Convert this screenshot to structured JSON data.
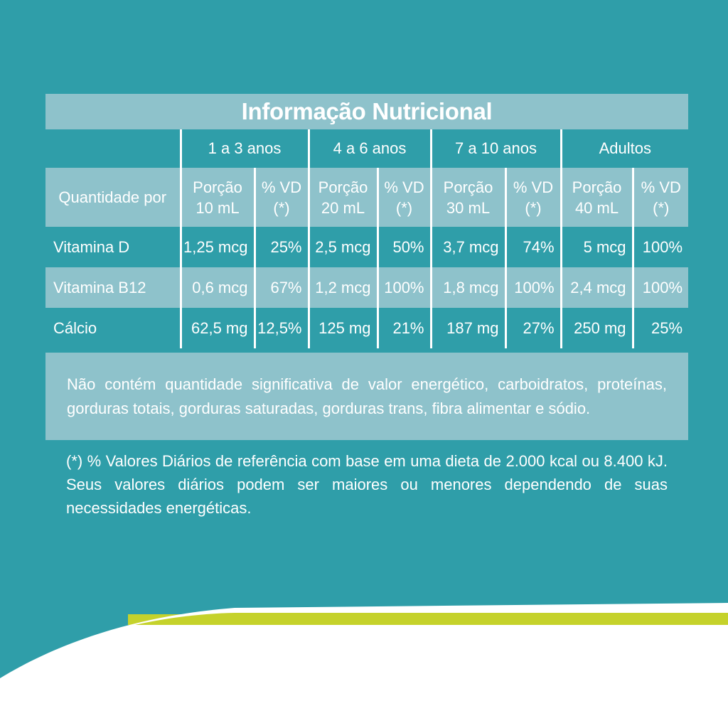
{
  "title": "Informação Nutricional",
  "groups": [
    "1 a 3 anos",
    "4 a 6 anos",
    "7 a 10 anos",
    "Adultos"
  ],
  "quantity_label": "Quantidade por",
  "subheaders": [
    {
      "portion": "Porção",
      "amount": "10 mL",
      "vd": "% VD",
      "ref": "(*)"
    },
    {
      "portion": "Porção",
      "amount": "20 mL",
      "vd": "% VD",
      "ref": "(*)"
    },
    {
      "portion": "Porção",
      "amount": "30 mL",
      "vd": "% VD",
      "ref": "(*)"
    },
    {
      "portion": "Porção",
      "amount": "40 mL",
      "vd": "% VD",
      "ref": "(*)"
    }
  ],
  "rows": [
    {
      "name": "Vitamina D",
      "values": [
        "1,25 mcg",
        "25%",
        "2,5 mcg",
        "50%",
        "3,7 mcg",
        "74%",
        "5 mcg",
        "100%"
      ]
    },
    {
      "name": "Vitamina B12",
      "values": [
        "0,6 mcg",
        "67%",
        "1,2 mcg",
        "100%",
        "1,8 mcg",
        "100%",
        "2,4 mcg",
        "100%"
      ]
    },
    {
      "name": "Cálcio",
      "values": [
        "62,5 mg",
        "12,5%",
        "125 mg",
        "21%",
        "187 mg",
        "27%",
        "250 mg",
        "25%"
      ]
    }
  ],
  "note": "Não contém quantidade significativa de valor energético, carboidratos, proteínas, gorduras totais, gorduras saturadas, gorduras trans, fibra alimentar e sódio.",
  "footnote": "(*) % Valores Diários de referência com base em uma dieta de 2.000 kcal ou 8.400 kJ. Seus valores diários podem ser maiores ou menores dependendo de suas necessidades energéticas.",
  "colors": {
    "background": "#2f9ea9",
    "light_band": "#8ec2cb",
    "accent_stripe": "#c5d22b",
    "white": "#ffffff"
  }
}
